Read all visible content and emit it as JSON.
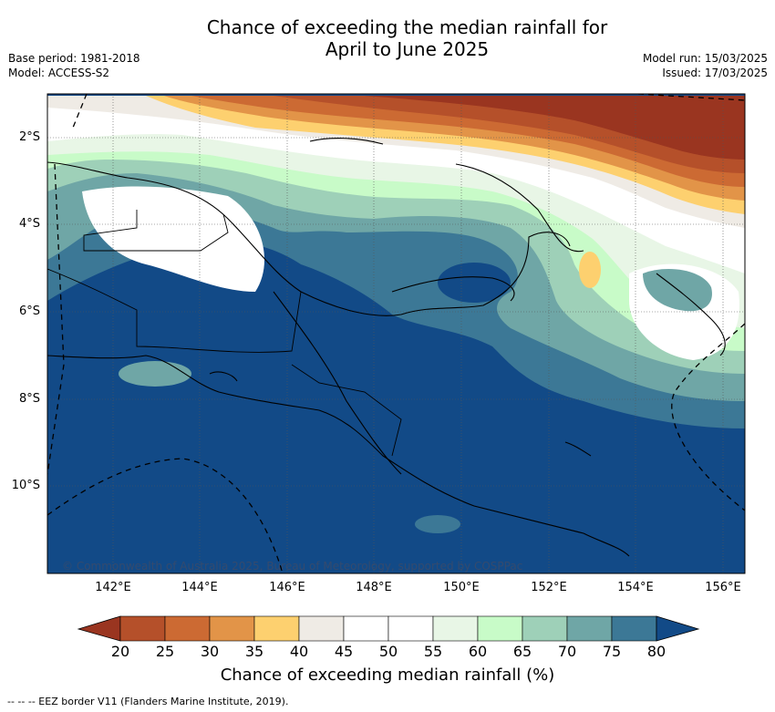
{
  "title_line1": "Chance of exceeding the median rainfall for",
  "title_line2": "April to June 2025",
  "meta": {
    "base_period": "Base period: 1981-2018",
    "model": "Model: ACCESS-S2",
    "model_run": "Model run: 15/03/2025",
    "issued": "Issued: 17/03/2025"
  },
  "map": {
    "lat_labels": [
      "2°S",
      "4°S",
      "6°S",
      "8°S",
      "10°S"
    ],
    "lon_labels": [
      "142°E",
      "144°E",
      "146°E",
      "148°E",
      "150°E",
      "152°E",
      "154°E",
      "156°E"
    ],
    "copyright": "© Commonwealth of Australia 2025, Bureau of Meteorology, supported by COSPPac"
  },
  "colorbar": {
    "ticks": [
      "20",
      "25",
      "30",
      "35",
      "40",
      "45",
      "50",
      "55",
      "60",
      "65",
      "70",
      "75",
      "80"
    ],
    "colors": [
      "#9a3520",
      "#b5502a",
      "#cc6a33",
      "#e29448",
      "#fdd06f",
      "#efebe5",
      "#ffffff",
      "#ffffff",
      "#e8f6e6",
      "#c8fbc8",
      "#9ed0b8",
      "#6fa6a6",
      "#3c7896",
      "#124a87"
    ],
    "label": "Chance of exceeding median rainfall (%)"
  },
  "footer": "--  --  -- EEZ border V11 (Flanders Marine Institute, 2019)."
}
